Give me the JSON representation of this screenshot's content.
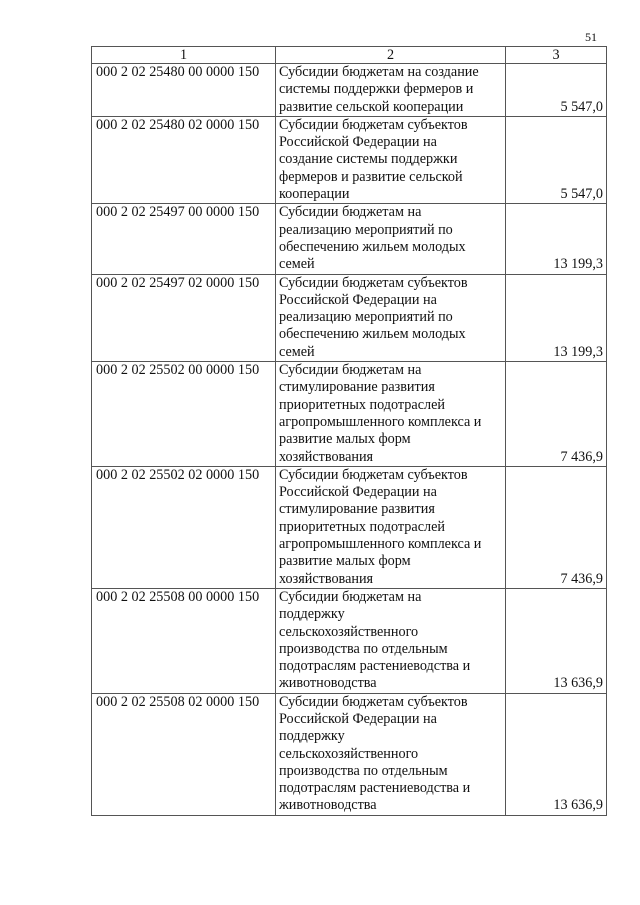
{
  "page_number": "51",
  "headers": [
    "1",
    "2",
    "3"
  ],
  "rows": [
    {
      "code": "000 2 02 25480 00 0000 150",
      "name": "Субсидии бюджетам на создание\nсистемы поддержки фермеров и\nразвитие сельской кооперации",
      "value": "5 547,0"
    },
    {
      "code": "000 2 02 25480 02 0000 150",
      "name": "Субсидии бюджетам субъектов\nРоссийской Федерации на\nсоздание системы поддержки\nфермеров и развитие сельской\nкооперации",
      "value": "5 547,0"
    },
    {
      "code": "000 2 02 25497 00 0000 150",
      "name": "Субсидии бюджетам на\nреализацию мероприятий по\nобеспечению жильем молодых\nсемей",
      "value": "13 199,3"
    },
    {
      "code": "000 2 02 25497 02 0000 150",
      "name": "Субсидии бюджетам субъектов\nРоссийской Федерации на\nреализацию мероприятий по\nобеспечению жильем молодых\nсемей",
      "value": "13 199,3"
    },
    {
      "code": "000 2 02 25502 00 0000 150",
      "name": "Субсидии бюджетам на\nстимулирование развития\nприоритетных подотраслей\nагропромышленного комплекса и\nразвитие малых форм\nхозяйствования",
      "value": "7 436,9"
    },
    {
      "code": "000 2 02 25502 02 0000 150",
      "name": "Субсидии бюджетам субъектов\nРоссийской Федерации на\nстимулирование развития\nприоритетных подотраслей\nагропромышленного комплекса и\nразвитие малых форм\nхозяйствования",
      "value": "7 436,9"
    },
    {
      "code": "000 2 02 25508 00 0000 150",
      "name": "Субсидии бюджетам на\nподдержку\nсельскохозяйственного\nпроизводства по отдельным\nподотраслям растениеводства и\nживотноводства",
      "value": "13 636,9"
    },
    {
      "code": "000 2 02 25508 02 0000 150",
      "name": "Субсидии бюджетам субъектов\nРоссийской Федерации на\nподдержку\nсельскохозяйственного\nпроизводства по отдельным\nподотраслям растениеводства и\nживотноводства",
      "value": "13 636,9"
    }
  ]
}
